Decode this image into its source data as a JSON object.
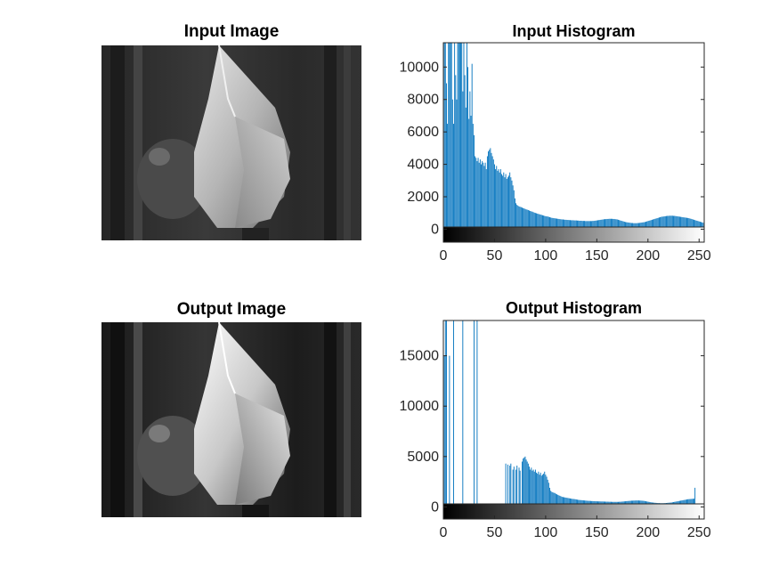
{
  "colors": {
    "bar": "#0072BD",
    "axis": "#262626",
    "background": "#ffffff"
  },
  "panels": {
    "input_image": {
      "title": "Input Image"
    },
    "output_image": {
      "title": "Output Image"
    }
  },
  "chart_data": [
    {
      "type": "bar",
      "title": "Input Histogram",
      "xlabel": "",
      "ylabel": "",
      "xlim": [
        0,
        255
      ],
      "ylim": [
        -800,
        11500
      ],
      "xticks": [
        0,
        50,
        100,
        150,
        200,
        250
      ],
      "yticks": [
        0,
        2000,
        4000,
        6000,
        8000,
        10000
      ],
      "colorbar": "grayscale",
      "x_start": 0,
      "values": [
        9000,
        11500,
        11500,
        9000,
        6500,
        11500,
        11500,
        11500,
        11500,
        8000,
        6500,
        11500,
        9500,
        8000,
        11500,
        11500,
        11500,
        11500,
        11500,
        8500,
        11500,
        9500,
        7500,
        11500,
        10000,
        6800,
        8500,
        7000,
        10200,
        6500,
        5800,
        4500,
        4400,
        4200,
        4400,
        4100,
        4300,
        4000,
        4200,
        4100,
        3900,
        4100,
        3700,
        4500,
        4800,
        4900,
        5000,
        4700,
        4500,
        4300,
        4000,
        3700,
        3900,
        3600,
        3700,
        3500,
        3700,
        3400,
        3300,
        3500,
        3200,
        3400,
        3100,
        3200,
        3300,
        3500,
        3200,
        3000,
        2700,
        2400,
        1900,
        1600,
        1500,
        1450,
        1400,
        1380,
        1360,
        1330,
        1300,
        1280,
        1250,
        1220,
        1200,
        1180,
        1150,
        1120,
        1100,
        1080,
        1050,
        1020,
        1000,
        980,
        960,
        940,
        920,
        900,
        880,
        860,
        840,
        820,
        800,
        790,
        780,
        760,
        740,
        720,
        700,
        690,
        680,
        670,
        660,
        650,
        640,
        630,
        620,
        610,
        600,
        600,
        590,
        580,
        580,
        570,
        570,
        560,
        560,
        550,
        550,
        550,
        540,
        540,
        540,
        530,
        530,
        520,
        520,
        520,
        510,
        510,
        510,
        500,
        500,
        500,
        500,
        500,
        500,
        500,
        510,
        510,
        520,
        530,
        540,
        550,
        560,
        570,
        580,
        590,
        600,
        610,
        620,
        620,
        630,
        630,
        640,
        640,
        640,
        640,
        630,
        630,
        620,
        610,
        600,
        580,
        560,
        540,
        520,
        500,
        480,
        460,
        440,
        430,
        420,
        410,
        400,
        390,
        380,
        380,
        370,
        370,
        370,
        370,
        380,
        380,
        390,
        400,
        410,
        420,
        430,
        440,
        460,
        480,
        500,
        520,
        540,
        560,
        580,
        600,
        620,
        640,
        660,
        680,
        700,
        720,
        740,
        760,
        770,
        780,
        790,
        800,
        810,
        820,
        820,
        830,
        830,
        830,
        830,
        820,
        820,
        810,
        800,
        790,
        780,
        770,
        760,
        750,
        740,
        730,
        720,
        710,
        700,
        690,
        680,
        660,
        640,
        620,
        600,
        580,
        560,
        540,
        520,
        500,
        480,
        460,
        440,
        420,
        400
      ]
    },
    {
      "type": "bar",
      "title": "Output Histogram",
      "xlabel": "",
      "ylabel": "",
      "xlim": [
        0,
        255
      ],
      "ylim": [
        -1200,
        18500
      ],
      "xticks": [
        0,
        50,
        100,
        150,
        200,
        250
      ],
      "yticks": [
        0,
        5000,
        10000,
        15000
      ],
      "colorbar": "grayscale",
      "x_start": 0,
      "values": [
        2000,
        15000,
        18500,
        18500,
        0,
        0,
        15000,
        0,
        0,
        0,
        18500,
        0,
        0,
        0,
        0,
        0,
        0,
        0,
        0,
        18500,
        0,
        0,
        0,
        0,
        0,
        0,
        0,
        0,
        0,
        0,
        18500,
        0,
        0,
        18500,
        0,
        0,
        0,
        0,
        0,
        0,
        0,
        0,
        0,
        0,
        0,
        0,
        0,
        0,
        0,
        0,
        0,
        0,
        0,
        0,
        0,
        0,
        0,
        0,
        0,
        0,
        0,
        4300,
        0,
        4200,
        0,
        4100,
        4300,
        0,
        3700,
        4000,
        0,
        3700,
        4100,
        0,
        3900,
        3600,
        0,
        4500,
        4800,
        4900,
        5000,
        4700,
        4500,
        4300,
        4000,
        3700,
        3900,
        3600,
        3700,
        3500,
        3700,
        3400,
        3300,
        3500,
        3200,
        3400,
        3100,
        3200,
        3300,
        3500,
        3200,
        3000,
        2700,
        2400,
        1900,
        1600,
        1500,
        1450,
        1400,
        1380,
        1300,
        1250,
        1200,
        1150,
        1100,
        1050,
        1000,
        980,
        960,
        940,
        920,
        900,
        880,
        860,
        840,
        820,
        800,
        790,
        780,
        760,
        740,
        720,
        700,
        690,
        680,
        670,
        660,
        650,
        640,
        630,
        620,
        610,
        600,
        600,
        590,
        580,
        580,
        570,
        570,
        560,
        560,
        550,
        550,
        550,
        540,
        540,
        540,
        530,
        530,
        520,
        520,
        520,
        510,
        510,
        510,
        500,
        500,
        500,
        500,
        500,
        500,
        500,
        510,
        510,
        520,
        530,
        540,
        550,
        560,
        570,
        580,
        590,
        600,
        610,
        620,
        620,
        630,
        630,
        640,
        640,
        640,
        640,
        630,
        630,
        620,
        610,
        600,
        580,
        560,
        540,
        520,
        500,
        480,
        460,
        440,
        430,
        420,
        410,
        400,
        390,
        380,
        380,
        370,
        370,
        370,
        370,
        380,
        380,
        390,
        400,
        410,
        420,
        430,
        440,
        460,
        480,
        500,
        520,
        540,
        560,
        580,
        600,
        620,
        640,
        660,
        680,
        700,
        720,
        740,
        760,
        770,
        780,
        790,
        800,
        810,
        820,
        1900,
        0,
        0,
        0,
        0,
        0,
        0,
        0,
        0,
        0,
        0,
        0,
        0
      ]
    }
  ]
}
